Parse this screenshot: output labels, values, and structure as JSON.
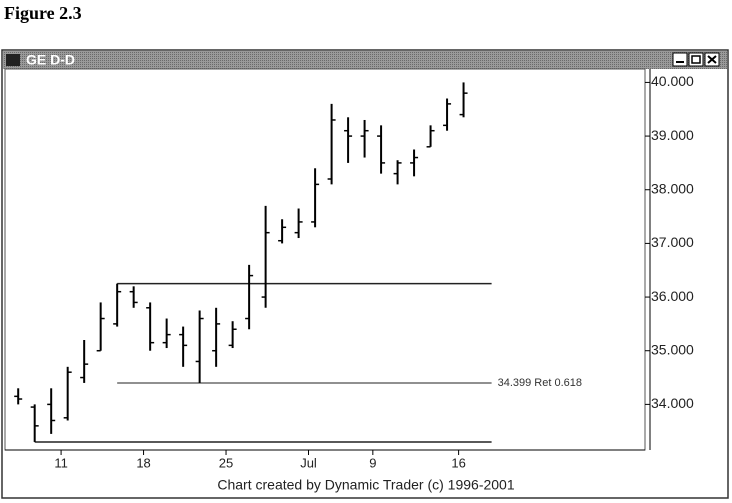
{
  "figure_label": "Figure 2.3",
  "window_title": "GE D-D",
  "footer": "Chart created by Dynamic Trader (c) 1996-2001",
  "chart_data": {
    "type": "ohlc",
    "color": "#000000",
    "ohlc": {
      "open": [
        34.15,
        33.95,
        34.0,
        33.75,
        34.5,
        35.0,
        35.5,
        36.1,
        35.8,
        35.15,
        35.3,
        34.8,
        35.0,
        35.1,
        35.6,
        36.0,
        37.05,
        37.2,
        37.4,
        38.2,
        39.1,
        39.0,
        39.0,
        38.3,
        38.5,
        38.8,
        39.2,
        39.4
      ],
      "high": [
        34.3,
        34.0,
        34.3,
        34.7,
        35.2,
        35.9,
        36.25,
        36.2,
        35.9,
        35.6,
        35.45,
        35.75,
        35.8,
        35.55,
        36.6,
        37.7,
        37.45,
        37.65,
        38.4,
        39.6,
        39.35,
        39.3,
        39.2,
        38.55,
        38.75,
        39.2,
        39.7,
        40.0
      ],
      "low": [
        34.0,
        33.3,
        33.45,
        33.7,
        34.4,
        35.0,
        35.45,
        35.8,
        35.0,
        35.05,
        34.7,
        34.4,
        34.7,
        35.05,
        35.4,
        35.8,
        37.0,
        37.1,
        37.3,
        38.1,
        38.5,
        38.6,
        38.3,
        38.1,
        38.25,
        38.8,
        39.1,
        39.35
      ],
      "close": [
        34.1,
        33.6,
        33.7,
        34.6,
        34.75,
        35.6,
        36.1,
        35.9,
        35.15,
        35.3,
        35.1,
        35.6,
        35.5,
        35.4,
        36.4,
        37.2,
        37.3,
        37.4,
        38.1,
        39.3,
        39.0,
        39.1,
        38.5,
        38.5,
        38.6,
        39.1,
        39.6,
        39.8
      ]
    },
    "xlim": [
      -0.8,
      38
    ],
    "xticks": [
      {
        "value": 2.6,
        "label": "11"
      },
      {
        "value": 7.6,
        "label": "18"
      },
      {
        "value": 12.6,
        "label": "25"
      },
      {
        "value": 17.6,
        "label": "Jul"
      },
      {
        "value": 21.5,
        "label": "9"
      },
      {
        "value": 26.7,
        "label": "16"
      }
    ],
    "ylim": [
      33.15,
      40.25
    ],
    "yticks": [
      {
        "value": 34,
        "label": "34.000"
      },
      {
        "value": 35,
        "label": "35.000"
      },
      {
        "value": 36,
        "label": "36.000"
      },
      {
        "value": 37,
        "label": "37.000"
      },
      {
        "value": 38,
        "label": "38.000"
      },
      {
        "value": 39,
        "label": "39.000"
      },
      {
        "value": 40,
        "label": "40.000"
      }
    ],
    "levels": [
      {
        "value": 36.25,
        "from": 6,
        "to": 28.7
      },
      {
        "value": 34.399,
        "from": 6,
        "to": 28.7,
        "label": "34.399 Ret 0.618"
      },
      {
        "value": 33.3,
        "from": 1,
        "to": 28.7
      }
    ]
  }
}
